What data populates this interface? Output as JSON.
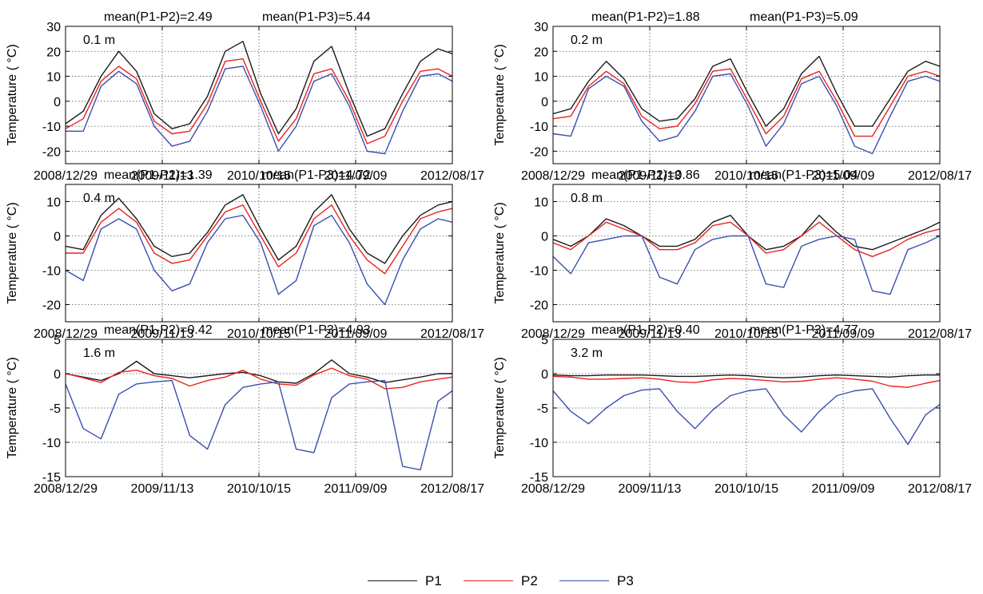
{
  "legend": {
    "p1": "P1",
    "p2": "P2",
    "p3": "P3"
  },
  "colors": {
    "P1": "#1a1a1a",
    "P2": "#e8231f",
    "P3": "#3a4fb0",
    "grid": "#555555"
  },
  "chart_data": [
    {
      "type": "line",
      "depth_label": "0.1 m",
      "annotation_left": "mean(P1-P2)=2.49",
      "annotation_right": "mean(P1-P3)=5.44",
      "ylabel": "Temperature ( °C)",
      "ylim": [
        -25,
        30
      ],
      "yticks": [
        -20,
        -10,
        0,
        10,
        20,
        30
      ],
      "xlim": [
        "2008-12-29",
        "2012-08-17"
      ],
      "xticks": [
        "2008/12/29",
        "2009/11/13",
        "2010/10/15",
        "2011/09/09",
        "2012/08/17"
      ],
      "grid": true,
      "x_months": [
        0,
        2,
        4,
        6,
        8,
        10,
        12,
        14,
        16,
        18,
        20,
        22,
        24,
        26,
        28,
        30,
        32,
        34,
        36,
        38,
        40,
        42,
        43.6
      ],
      "series": [
        {
          "name": "P1",
          "values": [
            -9,
            -4,
            10,
            20,
            12,
            -5,
            -11,
            -9,
            2,
            20,
            24,
            3,
            -13,
            -3,
            16,
            22,
            3,
            -14,
            -11,
            3,
            16,
            21,
            19
          ]
        },
        {
          "name": "P2",
          "values": [
            -11,
            -7,
            8,
            14,
            9,
            -8,
            -13,
            -12,
            -1,
            16,
            17,
            0,
            -16,
            -7,
            11,
            13,
            0,
            -17,
            -14,
            0,
            12,
            13,
            10
          ]
        },
        {
          "name": "P3",
          "values": [
            -12,
            -12,
            6,
            12,
            7,
            -10,
            -18,
            -16,
            -4,
            13,
            14,
            -2,
            -20,
            -10,
            8,
            11,
            -2,
            -20,
            -21,
            -4,
            10,
            11,
            8
          ]
        }
      ]
    },
    {
      "type": "line",
      "depth_label": "0.2 m",
      "annotation_left": "mean(P1-P2)=1.88",
      "annotation_right": "mean(P1-P3)=5.09",
      "ylabel": "Temperature ( °C)",
      "ylim": [
        -25,
        30
      ],
      "yticks": [
        -20,
        -10,
        0,
        10,
        20,
        30
      ],
      "xlim": [
        "2008-12-29",
        "2012-08-17"
      ],
      "xticks": [
        "2008/12/29",
        "2009/11/13",
        "2010/10/15",
        "2011/09/09",
        "2012/08/17"
      ],
      "grid": true,
      "x_months": [
        0,
        2,
        4,
        6,
        8,
        10,
        12,
        14,
        16,
        18,
        20,
        22,
        24,
        26,
        28,
        30,
        32,
        34,
        36,
        38,
        40,
        42,
        43.6
      ],
      "series": [
        {
          "name": "P1",
          "values": [
            -5,
            -3,
            8,
            16,
            9,
            -3,
            -8,
            -7,
            1,
            14,
            17,
            3,
            -10,
            -3,
            11,
            18,
            3,
            -10,
            -10,
            1,
            12,
            16,
            14
          ]
        },
        {
          "name": "P2",
          "values": [
            -7,
            -6,
            6,
            12,
            7,
            -6,
            -11,
            -10,
            -1,
            12,
            13,
            0,
            -13,
            -6,
            9,
            12,
            0,
            -14,
            -14,
            -2,
            10,
            12,
            10
          ]
        },
        {
          "name": "P3",
          "values": [
            -13,
            -14,
            5,
            10,
            6,
            -8,
            -16,
            -14,
            -4,
            10,
            11,
            -2,
            -18,
            -9,
            7,
            10,
            -2,
            -18,
            -21,
            -6,
            8,
            10,
            8
          ]
        }
      ]
    },
    {
      "type": "line",
      "depth_label": "0.4 m",
      "annotation_left": "mean(P1-P2)=1.39",
      "annotation_right": "mean(P1-P3)=4.72",
      "ylabel": "Temperature ( °C)",
      "ylim": [
        -25,
        15
      ],
      "yticks": [
        -20,
        -10,
        0,
        10
      ],
      "xlim": [
        "2008-12-29",
        "2012-08-17"
      ],
      "xticks": [
        "2008/12/29",
        "2009/11/13",
        "2010/10/15",
        "2011/09/09",
        "2012/08/17"
      ],
      "grid": true,
      "x_months": [
        0,
        2,
        4,
        6,
        8,
        10,
        12,
        14,
        16,
        18,
        20,
        22,
        24,
        26,
        28,
        30,
        32,
        34,
        36,
        38,
        40,
        42,
        43.6
      ],
      "series": [
        {
          "name": "P1",
          "values": [
            -3,
            -4,
            6,
            11,
            5,
            -3,
            -6,
            -5,
            1,
            9,
            12,
            2,
            -7,
            -3,
            7,
            12,
            2,
            -5,
            -8,
            0,
            6,
            9,
            10
          ]
        },
        {
          "name": "P2",
          "values": [
            -5,
            -5,
            4,
            8,
            4,
            -5,
            -8,
            -7,
            0,
            7,
            9,
            0,
            -9,
            -5,
            5,
            9,
            0,
            -7,
            -11,
            -3,
            5,
            7,
            8
          ]
        },
        {
          "name": "P3",
          "values": [
            -10,
            -13,
            2,
            5,
            2,
            -10,
            -16,
            -14,
            -2,
            5,
            6,
            -2,
            -17,
            -13,
            3,
            6,
            -2,
            -14,
            -20,
            -7,
            2,
            5,
            4
          ]
        }
      ]
    },
    {
      "type": "line",
      "depth_label": "0.8 m",
      "annotation_left": "mean(P1-P2)=0.86",
      "annotation_right": "mean(P1-P3)=5.04",
      "ylabel": "Temperature ( °C)",
      "ylim": [
        -25,
        15
      ],
      "yticks": [
        -20,
        -10,
        0,
        10
      ],
      "xlim": [
        "2008-12-29",
        "2012-08-17"
      ],
      "xticks": [
        "2008/12/29",
        "2009/11/13",
        "2010/10/15",
        "2011/09/09",
        "2012/08/17"
      ],
      "grid": true,
      "x_months": [
        0,
        2,
        4,
        6,
        8,
        10,
        12,
        14,
        16,
        18,
        20,
        22,
        24,
        26,
        28,
        30,
        32,
        34,
        36,
        38,
        40,
        42,
        43.6
      ],
      "series": [
        {
          "name": "P1",
          "values": [
            -1,
            -3,
            0,
            5,
            3,
            0,
            -3,
            -3,
            -1,
            4,
            6,
            0,
            -4,
            -3,
            0,
            6,
            1,
            -3,
            -4,
            -2,
            0,
            2,
            4
          ]
        },
        {
          "name": "P2",
          "values": [
            -2,
            -4,
            0,
            4,
            2,
            0,
            -4,
            -4,
            -2,
            3,
            4,
            0,
            -5,
            -4,
            0,
            4,
            0,
            -4,
            -6,
            -4,
            -1,
            1,
            2
          ]
        },
        {
          "name": "P3",
          "values": [
            -6,
            -11,
            -2,
            -1,
            0,
            0,
            -12,
            -14,
            -4,
            -1,
            0,
            0,
            -14,
            -15,
            -3,
            -1,
            0,
            -1,
            -16,
            -17,
            -4,
            -2,
            0
          ]
        }
      ]
    },
    {
      "type": "line",
      "depth_label": "1.6 m",
      "annotation_left": "mean(P1-P2)=0.42",
      "annotation_right": "mean(P1-P3)=4.93",
      "ylabel": "Temperature ( °C)",
      "ylim": [
        -15,
        5
      ],
      "yticks": [
        -15,
        -10,
        -5,
        0,
        5
      ],
      "xlim": [
        "2008-12-29",
        "2012-08-17"
      ],
      "xticks": [
        "2008/12/29",
        "2009/11/13",
        "2010/10/15",
        "2011/09/09",
        "2012/08/17"
      ],
      "grid": true,
      "x_months": [
        0,
        2,
        4,
        6,
        8,
        10,
        12,
        14,
        16,
        18,
        20,
        22,
        24,
        26,
        28,
        30,
        32,
        34,
        36,
        38,
        40,
        42,
        43.6
      ],
      "series": [
        {
          "name": "P1",
          "values": [
            0,
            -0.5,
            -1,
            0,
            1.8,
            0,
            -0.3,
            -0.6,
            -0.3,
            0,
            0.2,
            -0.3,
            -1.2,
            -1.4,
            0,
            2,
            0,
            -0.5,
            -1.3,
            -0.9,
            -0.5,
            0,
            0
          ]
        },
        {
          "name": "P2",
          "values": [
            0,
            -0.6,
            -1.3,
            0.2,
            0.5,
            -0.3,
            -0.7,
            -1.8,
            -1,
            -0.5,
            0.5,
            -0.8,
            -1.5,
            -1.7,
            -0.2,
            0.8,
            -0.3,
            -0.8,
            -2.2,
            -2,
            -1.2,
            -0.8,
            -0.5
          ]
        },
        {
          "name": "P3",
          "values": [
            -1.5,
            -8,
            -9.5,
            -3,
            -1.5,
            -1.2,
            -1,
            -9,
            -11,
            -4.5,
            -2,
            -1.5,
            -1.2,
            -11,
            -11.5,
            -3.5,
            -1.5,
            -1.2,
            -1,
            -13.5,
            -14,
            -4,
            -2.5
          ]
        }
      ]
    },
    {
      "type": "line",
      "depth_label": "3.2 m",
      "annotation_left": "mean(P1-P2)=0.40",
      "annotation_right": "mean(P1-P3)=4.77",
      "ylabel": "Temperature ( °C)",
      "ylim": [
        -15,
        5
      ],
      "yticks": [
        -15,
        -10,
        -5,
        0,
        5
      ],
      "xlim": [
        "2008-12-29",
        "2012-08-17"
      ],
      "xticks": [
        "2008/12/29",
        "2009/11/13",
        "2010/10/15",
        "2011/09/09",
        "2012/08/17"
      ],
      "grid": true,
      "x_months": [
        0,
        2,
        4,
        6,
        8,
        10,
        12,
        14,
        16,
        18,
        20,
        22,
        24,
        26,
        28,
        30,
        32,
        34,
        36,
        38,
        40,
        42,
        43.6
      ],
      "series": [
        {
          "name": "P1",
          "values": [
            -0.2,
            -0.3,
            -0.3,
            -0.2,
            -0.2,
            -0.2,
            -0.3,
            -0.4,
            -0.4,
            -0.3,
            -0.2,
            -0.3,
            -0.5,
            -0.6,
            -0.5,
            -0.3,
            -0.2,
            -0.3,
            -0.4,
            -0.5,
            -0.3,
            -0.2,
            -0.2
          ]
        },
        {
          "name": "P2",
          "values": [
            -0.4,
            -0.5,
            -0.8,
            -0.8,
            -0.7,
            -0.6,
            -0.8,
            -1.2,
            -1.3,
            -0.9,
            -0.7,
            -0.8,
            -1,
            -1.2,
            -1.1,
            -0.8,
            -0.6,
            -0.8,
            -1.1,
            -1.8,
            -2,
            -1.4,
            -1
          ]
        },
        {
          "name": "P3",
          "values": [
            -2.5,
            -5.5,
            -7.3,
            -5,
            -3.2,
            -2.4,
            -2.2,
            -5.5,
            -8,
            -5.3,
            -3.2,
            -2.5,
            -2.2,
            -6,
            -8.5,
            -5.5,
            -3.2,
            -2.5,
            -2.2,
            -6.5,
            -10.3,
            -6,
            -4.5
          ]
        }
      ]
    }
  ]
}
